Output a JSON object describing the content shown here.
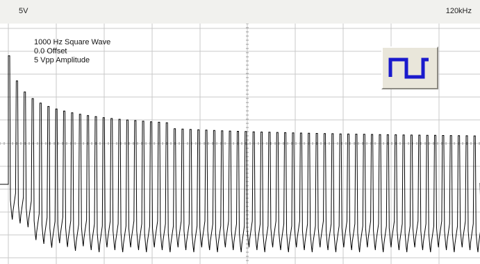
{
  "header": {
    "left_scale": "5V",
    "right_scale": "120kHz"
  },
  "info": {
    "line1": "1000 Hz Square Wave",
    "line2": "0.0 Offset",
    "line3": "5 Vpp Amplitude"
  },
  "waveform_button": {
    "icon": "square-wave-icon",
    "icon_color": "#1a1acc"
  },
  "display": {
    "trace_color": "#000000",
    "grid_color": "#c8c8c8",
    "harmonic_count": 60
  }
}
